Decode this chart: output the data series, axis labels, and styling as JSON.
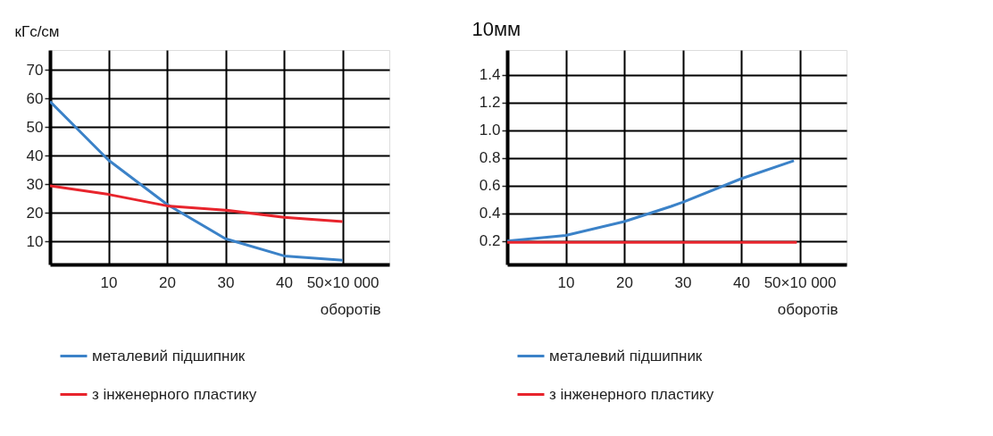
{
  "chart_data": [
    {
      "type": "line",
      "ylabel": "кГс/см",
      "xlabel": "оборотів",
      "xlim": [
        0,
        58
      ],
      "ylim": [
        2,
        77
      ],
      "xticks": [
        10,
        20,
        30,
        40,
        {
          "value": 50,
          "label": "50×10 000"
        }
      ],
      "yticks": [
        10,
        20,
        30,
        40,
        50,
        60,
        70
      ],
      "grid": true,
      "legend": "bottom",
      "marker": "none",
      "line_style": "solid",
      "x": [
        0,
        10,
        20,
        30,
        40,
        50
      ],
      "series": [
        {
          "name": "металевий підшипник",
          "color": "#3b82c8",
          "values": [
            59,
            38.5,
            23,
            11,
            5,
            3.5
          ]
        },
        {
          "name": "з інженерного пластику",
          "color": "#e8242c",
          "values": [
            29.5,
            26.5,
            22.5,
            21,
            18.5,
            17
          ]
        }
      ]
    },
    {
      "type": "line",
      "ylabel": "10мм",
      "xlabel": "оборотів",
      "xlim": [
        0,
        58
      ],
      "ylim": [
        0.03,
        1.58
      ],
      "xticks": [
        10,
        20,
        30,
        40,
        {
          "value": 50,
          "label": "50×10 000"
        }
      ],
      "yticks": [
        {
          "value": 0.2,
          "label": "0.2"
        },
        {
          "value": 0.4,
          "label": "0.4"
        },
        {
          "value": 0.6,
          "label": "0.6"
        },
        {
          "value": 0.8,
          "label": "0.8"
        },
        {
          "value": 1.0,
          "label": "1.0"
        },
        {
          "value": 1.2,
          "label": "1.2"
        },
        {
          "value": 1.4,
          "label": "1.4"
        }
      ],
      "grid": true,
      "legend": "bottom",
      "marker": "none",
      "line_style": "solid",
      "series": [
        {
          "name": "металевий підшипник",
          "color": "#3b82c8",
          "x": [
            0,
            10,
            20,
            28,
            30,
            40,
            49
          ],
          "values": [
            0.2,
            0.24,
            0.34,
            0.45,
            0.48,
            0.65,
            0.78
          ]
        },
        {
          "name": "з інженерного пластику",
          "color": "#e8242c",
          "x": [
            0,
            49.5
          ],
          "values": [
            0.19,
            0.19
          ]
        }
      ]
    }
  ]
}
